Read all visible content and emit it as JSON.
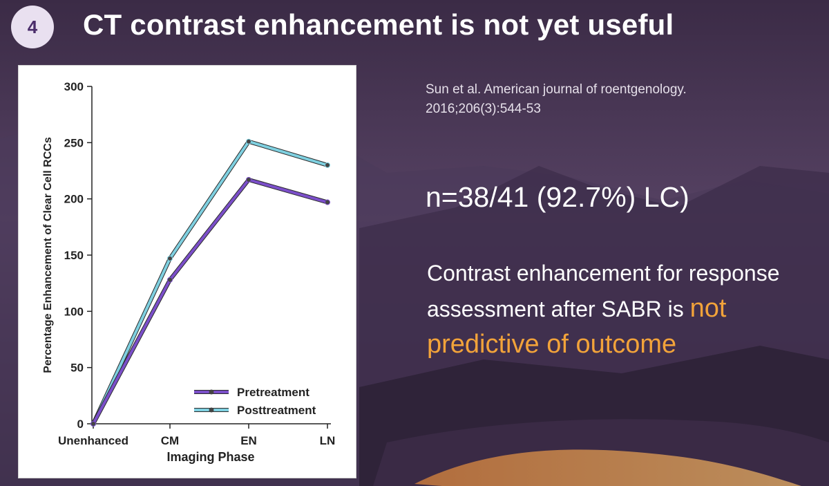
{
  "slide": {
    "number": "4",
    "title": "CT contrast enhancement is not yet useful",
    "citation_line1": "Sun et al. American journal of roentgenology.",
    "citation_line2": "2016;206(3):544-53",
    "stat": "n=38/41 (92.7%) LC)",
    "message_part1": "Contrast enhancement for response assessment after SABR is ",
    "message_highlight1": "not",
    "message_highlight2": "predictive of outcome",
    "highlight_color": "#f2a33a"
  },
  "chart_data": {
    "type": "line",
    "categories": [
      "Unenhanced",
      "CM",
      "EN",
      "LN"
    ],
    "series": [
      {
        "name": "Pretreatment",
        "values": [
          0,
          128,
          217,
          197
        ],
        "color": "#7b4fc9"
      },
      {
        "name": "Posttreatment",
        "values": [
          0,
          147,
          251,
          230
        ],
        "color": "#7fd0e0"
      }
    ],
    "xlabel": "Imaging Phase",
    "ylabel": "Percentage Enhancement of Clear Cell RCCs",
    "ylim": [
      0,
      300
    ],
    "yticks": [
      0,
      50,
      100,
      150,
      200,
      250,
      300
    ],
    "grid": false,
    "legend": "bottom-right"
  }
}
